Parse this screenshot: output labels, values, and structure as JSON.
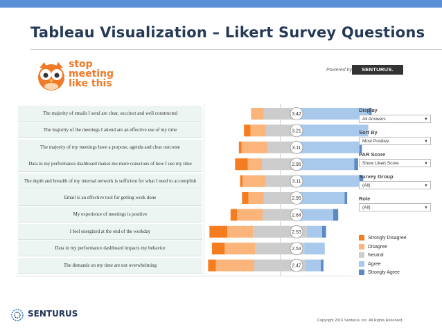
{
  "title": "Tableau Visualization – Likert Survey Questions",
  "brand": {
    "logo_lines": [
      "stop",
      "meeting",
      "like this"
    ],
    "powered_by": "Powered by:",
    "powered_brand": "SENTURUS."
  },
  "filters": [
    {
      "label": "Display",
      "value": "All Answers"
    },
    {
      "label": "Sort By",
      "value": "Most Positive"
    },
    {
      "label": "PAR Score",
      "value": "Show Likert Score"
    },
    {
      "label": "Survey Group",
      "value": "(All)"
    },
    {
      "label": "Role",
      "value": "(All)"
    }
  ],
  "legend": [
    {
      "label": "Strongly Disagree",
      "color": "#f57d1f"
    },
    {
      "label": "Disagree",
      "color": "#fbb57b"
    },
    {
      "label": "Neutral",
      "color": "#cccccc"
    },
    {
      "label": "Agree",
      "color": "#a9c9ec"
    },
    {
      "label": "Strongly Agree",
      "color": "#5b8ac4"
    }
  ],
  "chart_data": {
    "type": "bar",
    "stacked": "diverging",
    "categories": [
      "The majority of emails I send are clear, succinct and well constructed",
      "The majority of the meetings I attend are an effective use of my time",
      "The majority of my meetings have a purpose, agenda and clear outcome",
      "Data in my performance dashboard makes me more conscious of how I use my time",
      "The depth and breadth of my internal network is sufficient for what I need to accomplish",
      "Email is an effective tool for getting work done",
      "My experience of meetings is positive",
      "I feel energized at the end of the workday",
      "Data in my performance dashboard impacts my behavior",
      "The demands on my time are not overwhelming"
    ],
    "scores": [
      "3.42",
      "3.21",
      "3.11",
      "2.95",
      "3.11",
      "2.95",
      "2.84",
      "2.53",
      "2.53",
      "2.47"
    ],
    "series": [
      {
        "name": "Strongly Disagree",
        "values": [
          0,
          5,
          2,
          10,
          2,
          5,
          5,
          14,
          10,
          6
        ]
      },
      {
        "name": "Disagree",
        "values": [
          10,
          12,
          20,
          11,
          18,
          12,
          20,
          20,
          24,
          30
        ]
      },
      {
        "name": "Neutral",
        "values": [
          25,
          22,
          20,
          28,
          22,
          25,
          27,
          42,
          38,
          40
        ]
      },
      {
        "name": "Agree",
        "values": [
          57,
          58,
          52,
          44,
          51,
          38,
          28,
          12,
          16,
          12
        ]
      },
      {
        "name": "Strongly Agree",
        "values": [
          2,
          0,
          2,
          3,
          3,
          2,
          4,
          3,
          0,
          2
        ]
      }
    ]
  },
  "footer": {
    "brand": "SENTURUS",
    "copyright": "Copyright 2016 Senturus, Inc.    All Rights Reserved."
  }
}
